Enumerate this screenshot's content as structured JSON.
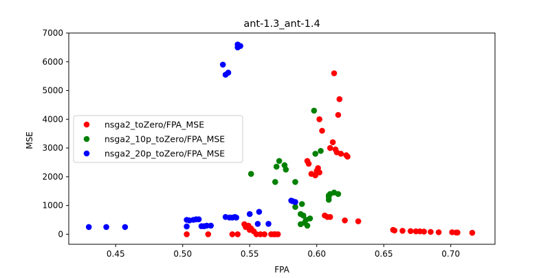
{
  "chart_data": {
    "type": "scatter",
    "title": "ant-1.3_ant-1.4",
    "xlabel": "FPA",
    "ylabel": "MSE",
    "xlim": [
      0.415,
      0.733
    ],
    "ylim": [
      -350,
      7000
    ],
    "xticks": [
      0.45,
      0.5,
      0.55,
      0.6,
      0.65,
      0.7
    ],
    "xtick_labels": [
      "0.45",
      "0.50",
      "0.55",
      "0.60",
      "0.65",
      "0.70"
    ],
    "yticks": [
      0,
      1000,
      2000,
      3000,
      4000,
      5000,
      6000,
      7000
    ],
    "ytick_labels": [
      "0",
      "1000",
      "2000",
      "3000",
      "4000",
      "5000",
      "6000",
      "7000"
    ],
    "grid": false,
    "legend_position": "center-left",
    "series": [
      {
        "name": "nsga2_toZero/FPA_MSE",
        "color": "#ff0000",
        "points": [
          [
            0.503,
            0
          ],
          [
            0.519,
            0
          ],
          [
            0.537,
            0
          ],
          [
            0.541,
            0
          ],
          [
            0.546,
            350
          ],
          [
            0.547,
            250
          ],
          [
            0.549,
            300
          ],
          [
            0.55,
            150
          ],
          [
            0.551,
            200
          ],
          [
            0.553,
            100
          ],
          [
            0.555,
            0
          ],
          [
            0.558,
            0
          ],
          [
            0.561,
            0
          ],
          [
            0.566,
            0
          ],
          [
            0.568,
            0
          ],
          [
            0.569,
            0
          ],
          [
            0.571,
            0
          ],
          [
            0.593,
            2550
          ],
          [
            0.594,
            2450
          ],
          [
            0.596,
            2100
          ],
          [
            0.599,
            2050
          ],
          [
            0.6,
            2200
          ],
          [
            0.601,
            2300
          ],
          [
            0.602,
            2150
          ],
          [
            0.602,
            4000
          ],
          [
            0.604,
            3600
          ],
          [
            0.606,
            650
          ],
          [
            0.608,
            600
          ],
          [
            0.61,
            600
          ],
          [
            0.61,
            3000
          ],
          [
            0.612,
            3200
          ],
          [
            0.613,
            5600
          ],
          [
            0.614,
            2950
          ],
          [
            0.615,
            2850
          ],
          [
            0.616,
            4150
          ],
          [
            0.617,
            4700
          ],
          [
            0.618,
            2800
          ],
          [
            0.621,
            480
          ],
          [
            0.622,
            2750
          ],
          [
            0.623,
            2700
          ],
          [
            0.631,
            450
          ],
          [
            0.657,
            150
          ],
          [
            0.658,
            130
          ],
          [
            0.664,
            120
          ],
          [
            0.67,
            110
          ],
          [
            0.674,
            100
          ],
          [
            0.677,
            100
          ],
          [
            0.68,
            90
          ],
          [
            0.685,
            80
          ],
          [
            0.691,
            70
          ],
          [
            0.701,
            70
          ],
          [
            0.704,
            60
          ],
          [
            0.705,
            60
          ],
          [
            0.716,
            50
          ]
        ]
      },
      {
        "name": "nsga2_10p_toZero/FPA_MSE",
        "color": "#008000",
        "points": [
          [
            0.551,
            2100
          ],
          [
            0.569,
            1820
          ],
          [
            0.57,
            2350
          ],
          [
            0.572,
            2550
          ],
          [
            0.576,
            2400
          ],
          [
            0.577,
            2250
          ],
          [
            0.584,
            1820
          ],
          [
            0.584,
            950
          ],
          [
            0.588,
            700
          ],
          [
            0.588,
            350
          ],
          [
            0.589,
            1050
          ],
          [
            0.59,
            650
          ],
          [
            0.591,
            400
          ],
          [
            0.592,
            500
          ],
          [
            0.593,
            300
          ],
          [
            0.595,
            550
          ],
          [
            0.598,
            4300
          ],
          [
            0.599,
            2800
          ],
          [
            0.603,
            2900
          ],
          [
            0.609,
            1200
          ],
          [
            0.609,
            1300
          ],
          [
            0.609,
            1350
          ],
          [
            0.61,
            1400
          ],
          [
            0.613,
            1450
          ],
          [
            0.616,
            1400
          ]
        ]
      },
      {
        "name": "nsga2_20p_toZero/FPA_MSE",
        "color": "#0000ff",
        "points": [
          [
            0.43,
            250
          ],
          [
            0.443,
            250
          ],
          [
            0.457,
            250
          ],
          [
            0.503,
            500
          ],
          [
            0.503,
            270
          ],
          [
            0.505,
            480
          ],
          [
            0.508,
            500
          ],
          [
            0.51,
            520
          ],
          [
            0.512,
            520
          ],
          [
            0.514,
            280
          ],
          [
            0.516,
            280
          ],
          [
            0.518,
            300
          ],
          [
            0.521,
            300
          ],
          [
            0.53,
            5900
          ],
          [
            0.532,
            5550
          ],
          [
            0.532,
            600
          ],
          [
            0.534,
            5620
          ],
          [
            0.535,
            580
          ],
          [
            0.537,
            580
          ],
          [
            0.539,
            600
          ],
          [
            0.54,
            580
          ],
          [
            0.541,
            6500
          ],
          [
            0.541,
            6600
          ],
          [
            0.543,
            6550
          ],
          [
            0.55,
            700
          ],
          [
            0.556,
            360
          ],
          [
            0.557,
            780
          ],
          [
            0.564,
            360
          ],
          [
            0.581,
            1170
          ],
          [
            0.582,
            1150
          ],
          [
            0.584,
            1120
          ]
        ]
      }
    ]
  }
}
